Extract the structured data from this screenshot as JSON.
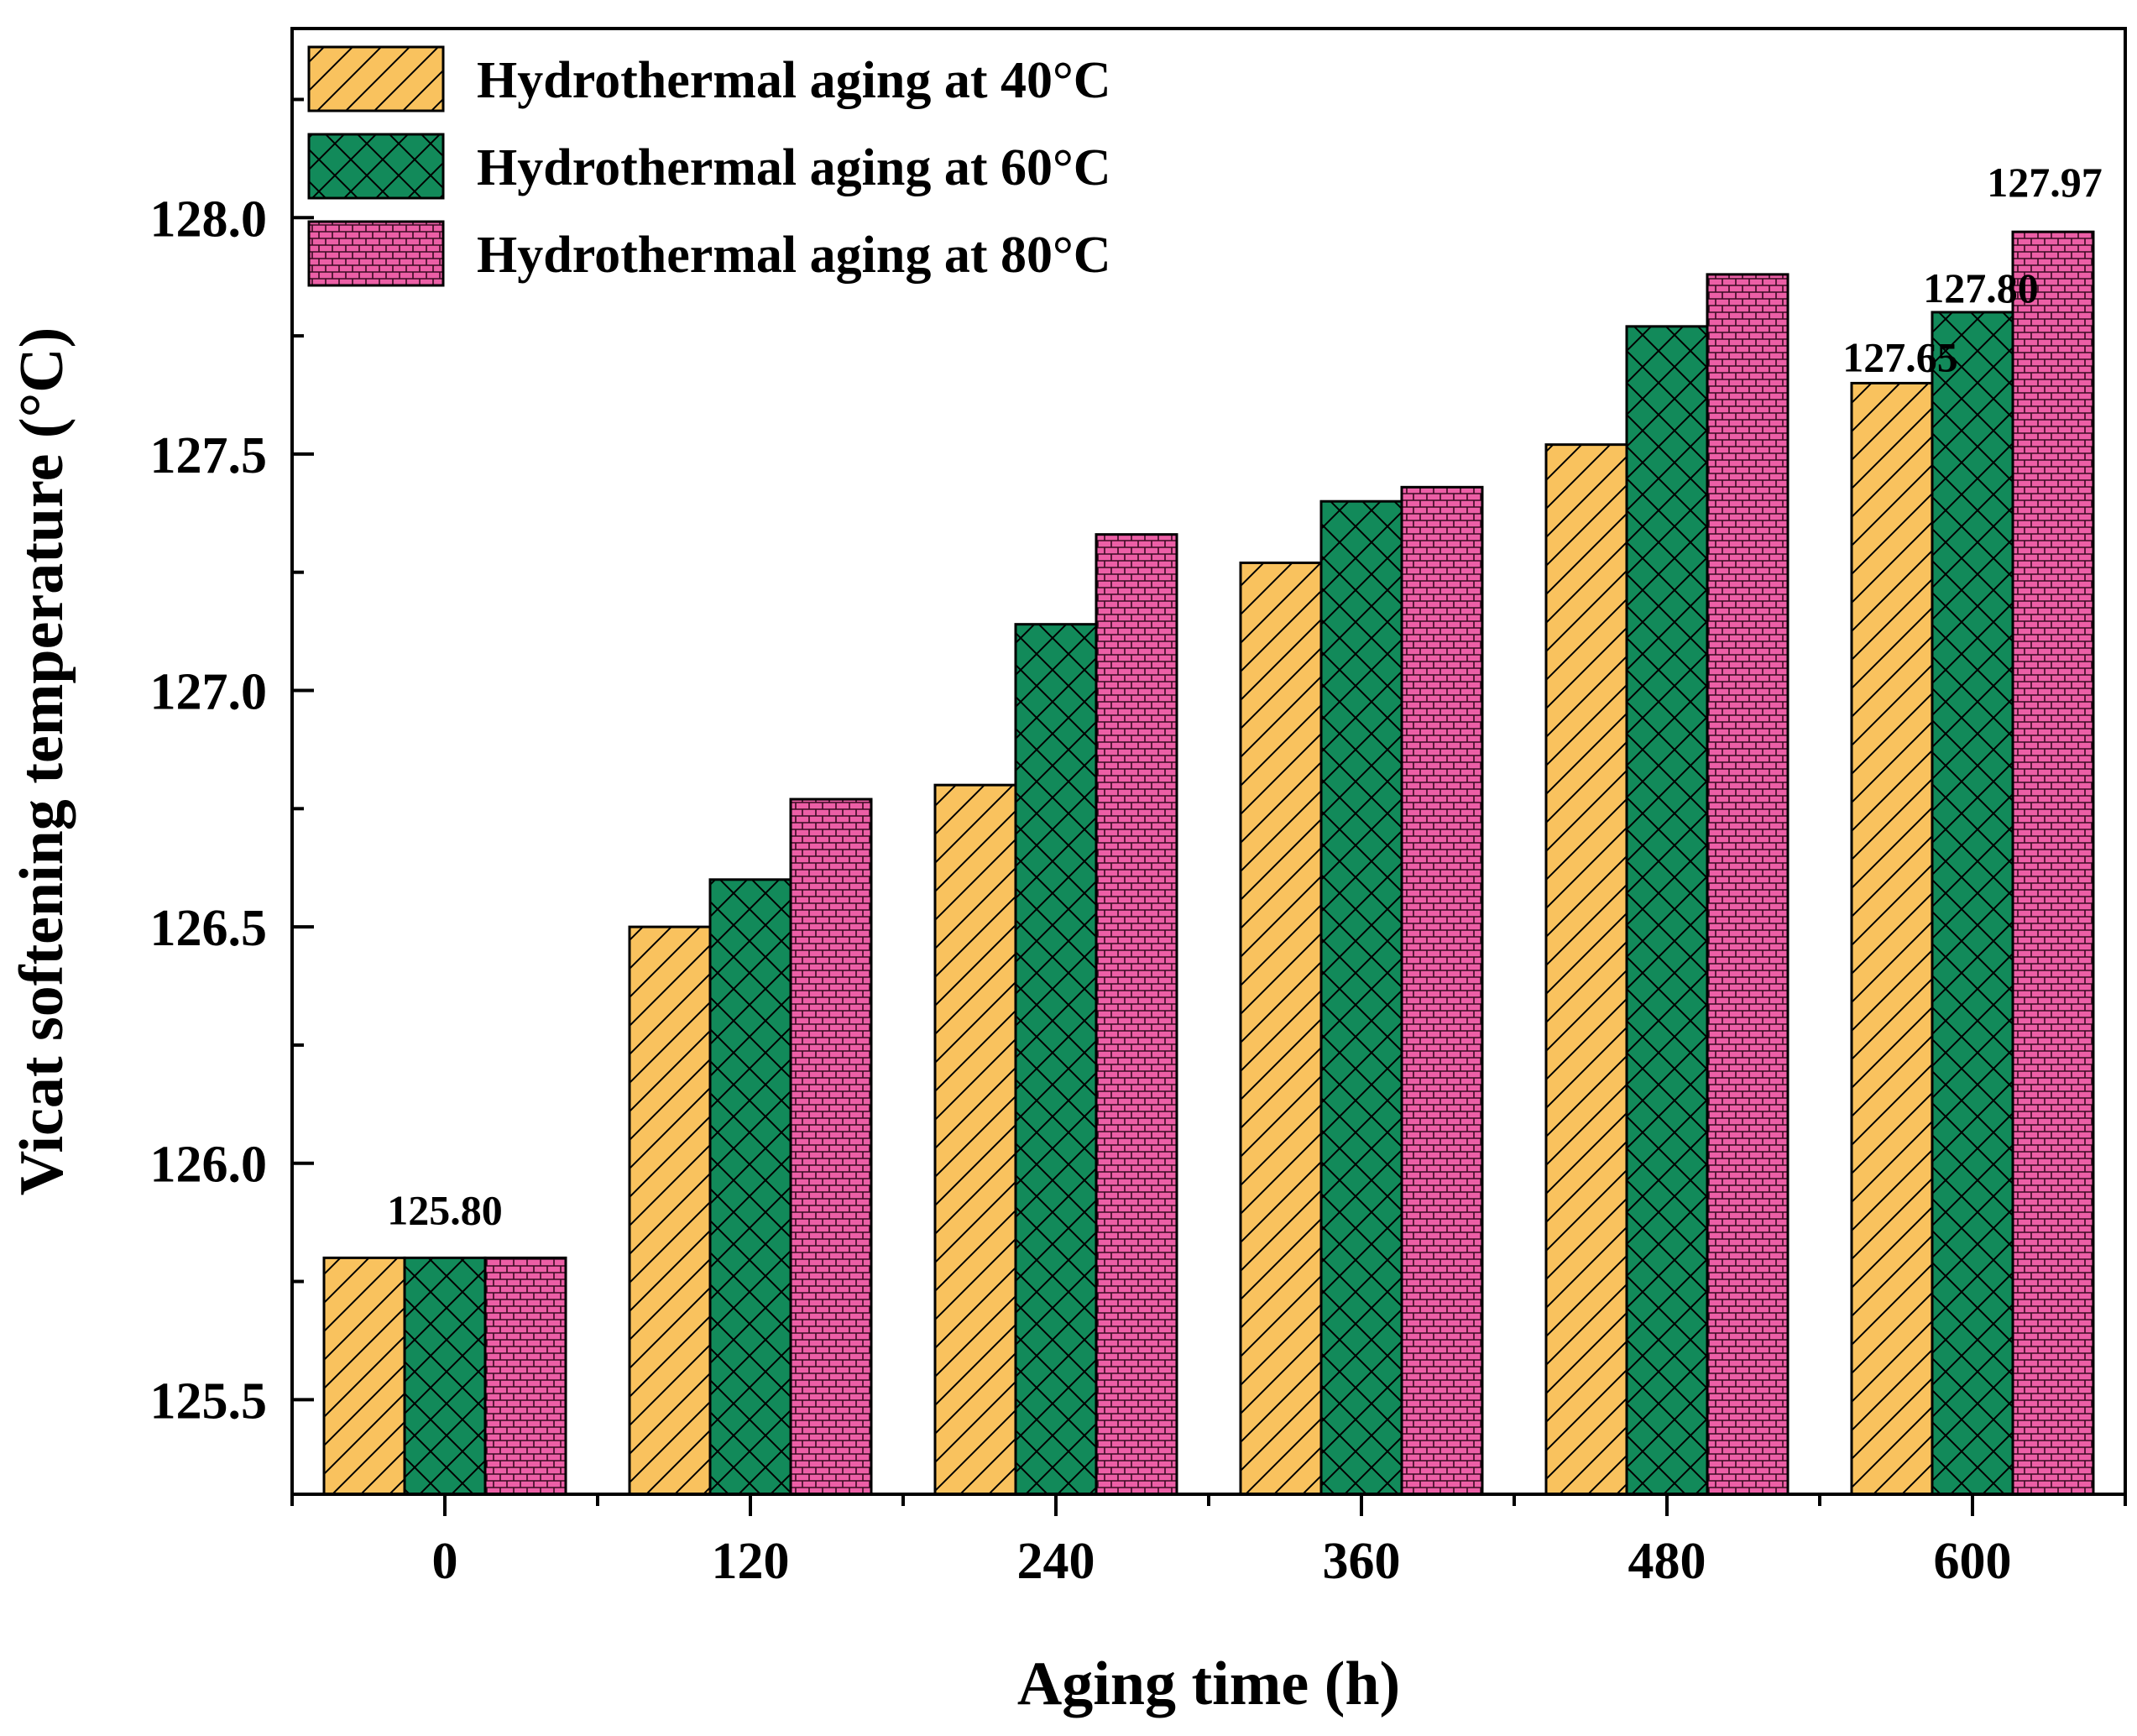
{
  "chart_data": {
    "type": "bar",
    "title": "",
    "xlabel": "Aging time (h)",
    "ylabel": "Vicat softening temperature (°C)",
    "categories": [
      "0",
      "120",
      "240",
      "360",
      "480",
      "600"
    ],
    "ylim": [
      125.3,
      128.4
    ],
    "yticks": [
      125.5,
      126.0,
      126.5,
      127.0,
      127.5,
      128.0
    ],
    "ytick_labels": [
      "125.5",
      "126.0",
      "126.5",
      "127.0",
      "127.5",
      "128.0"
    ],
    "series": [
      {
        "name": "Hydrothermal aging at 40°C",
        "color": "#f9c25e",
        "pattern": "diagonal-hatch",
        "values": [
          125.8,
          126.5,
          126.8,
          127.27,
          127.52,
          127.65
        ]
      },
      {
        "name": "Hydrothermal aging at 60°C",
        "color": "#128a5a",
        "pattern": "cross-hatch",
        "values": [
          125.8,
          126.6,
          127.14,
          127.4,
          127.77,
          127.8
        ]
      },
      {
        "name": "Hydrothermal aging at 80°C",
        "color": "#ec5fa6",
        "pattern": "brick",
        "values": [
          125.8,
          126.77,
          127.33,
          127.43,
          127.88,
          127.97
        ]
      }
    ],
    "annotations": [
      {
        "text": "125.80",
        "category": "0",
        "series": 1
      },
      {
        "text": "127.65",
        "category": "600",
        "series": 0
      },
      {
        "text": "127.80",
        "category": "600",
        "series": 1
      },
      {
        "text": "127.97",
        "category": "600",
        "series": 2
      }
    ],
    "legend_position": "top-left"
  }
}
